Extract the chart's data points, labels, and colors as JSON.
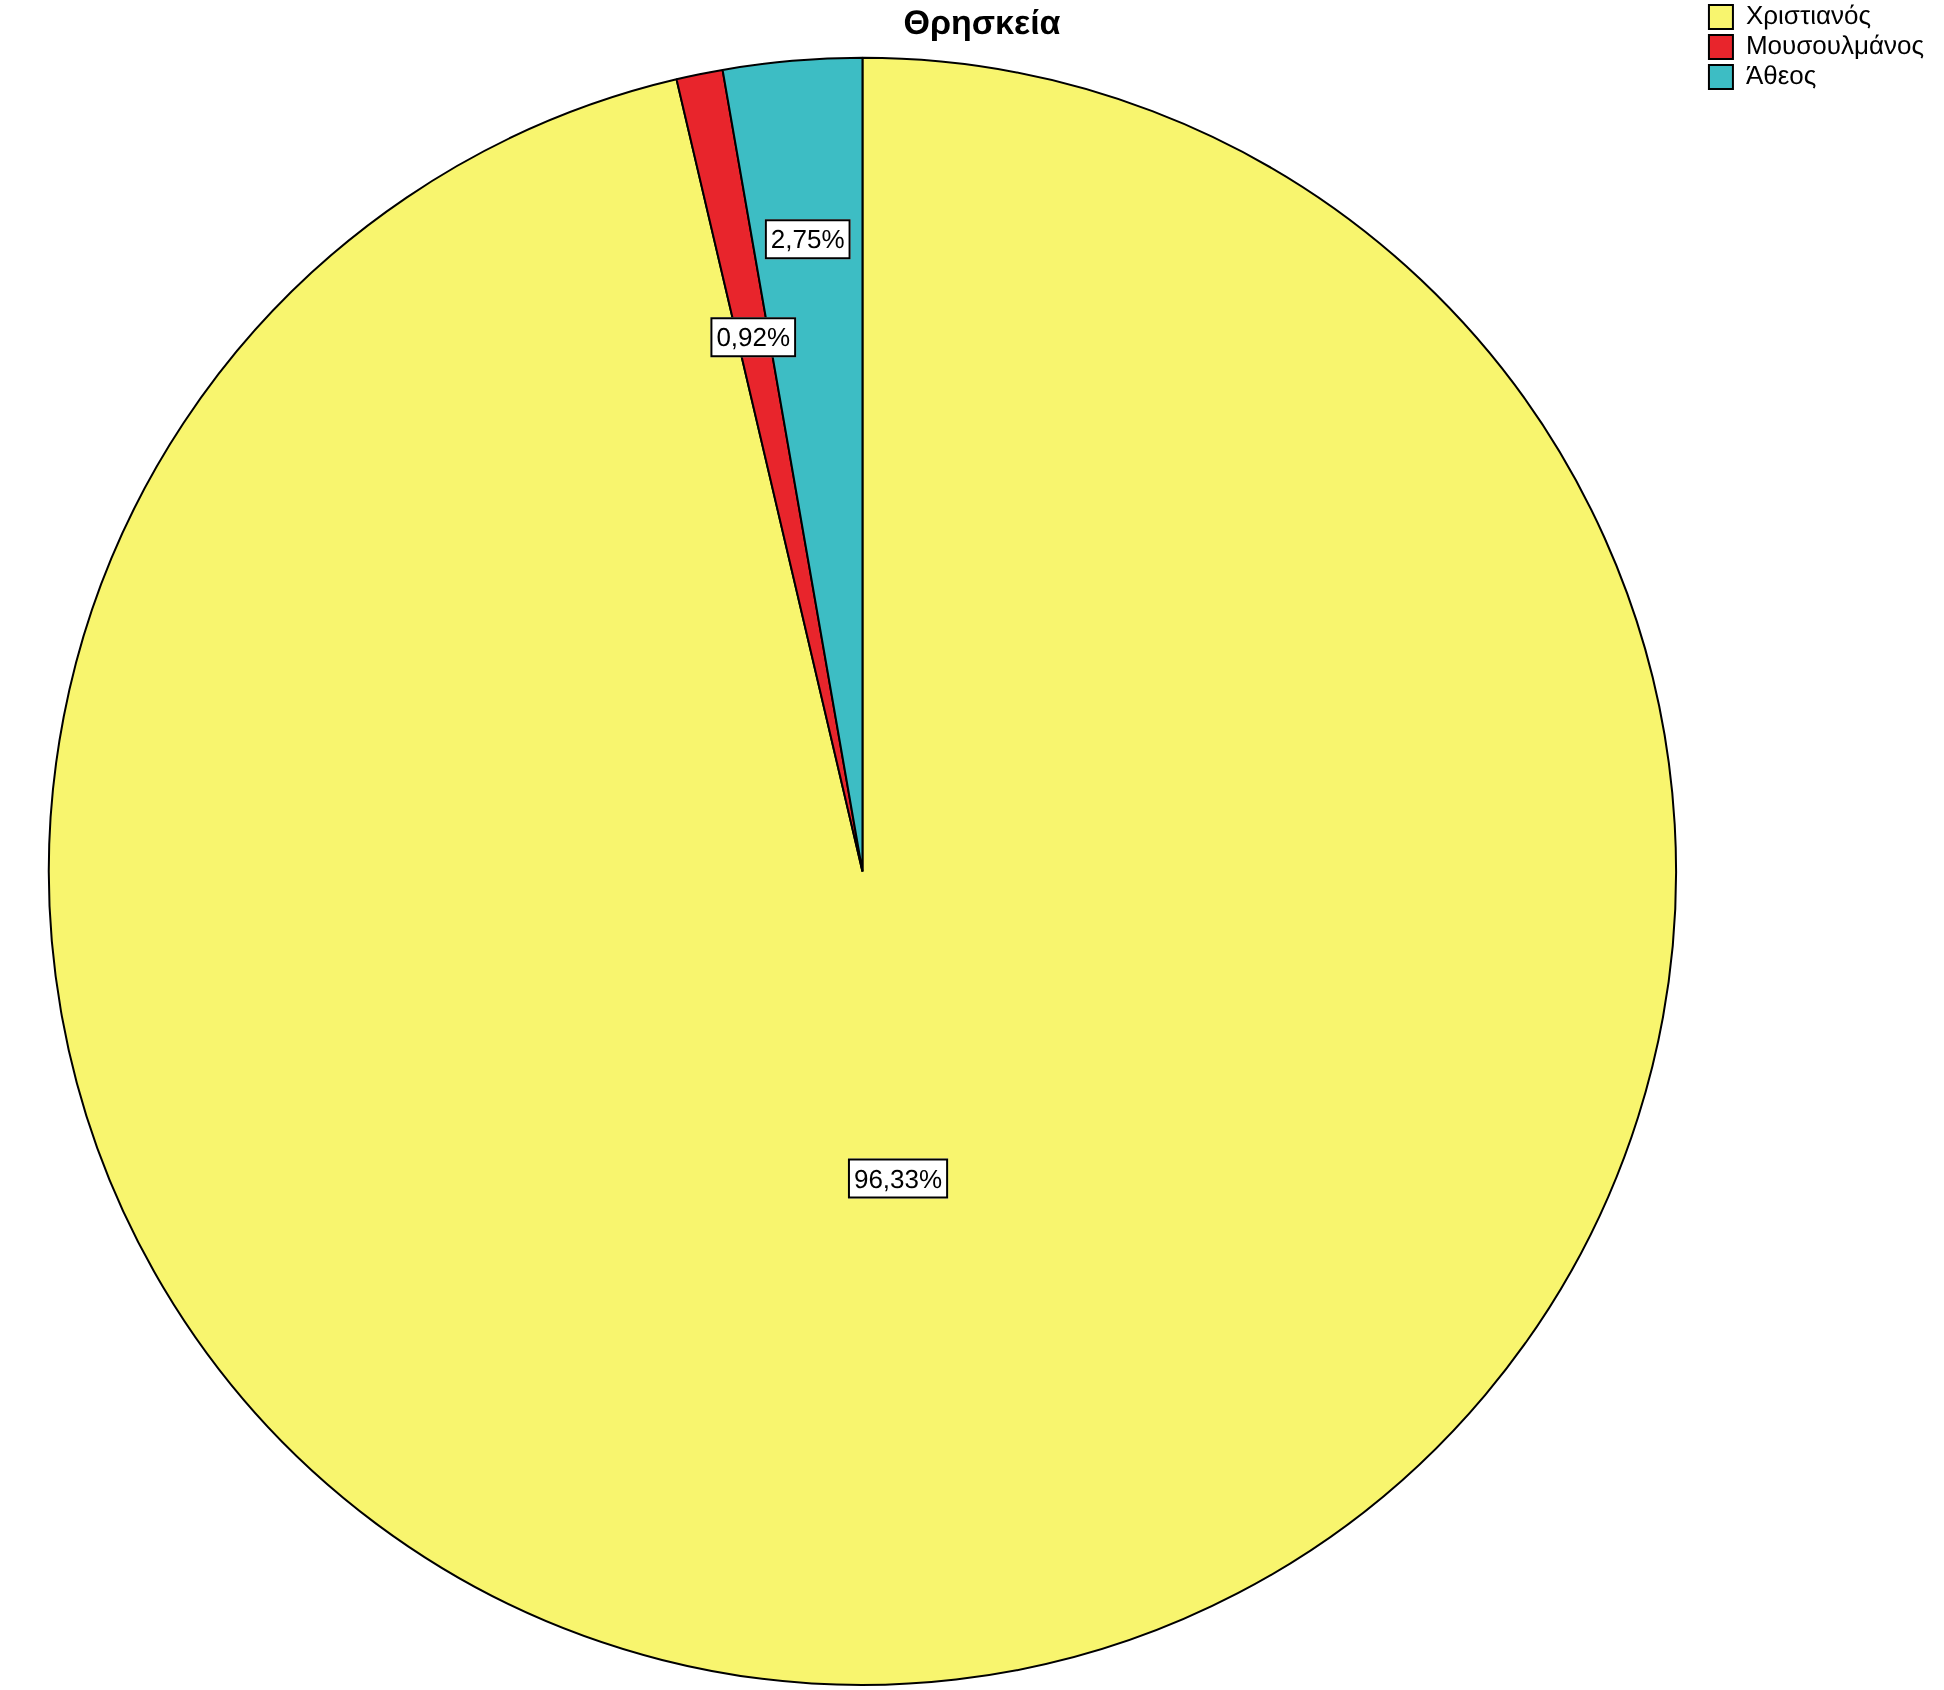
{
  "chart_data": {
    "type": "pie",
    "title": "Θρησκεία",
    "categories": [
      "Χριστιανός",
      "Μουσουλμάνος",
      "Άθεος"
    ],
    "values": [
      96.33,
      0.92,
      2.75
    ],
    "colors": [
      "#f8f56e",
      "#e8252c",
      "#3dbdc4"
    ],
    "value_labels": [
      "96,33%",
      "0,92%",
      "2,75%"
    ],
    "legend": "top right"
  }
}
